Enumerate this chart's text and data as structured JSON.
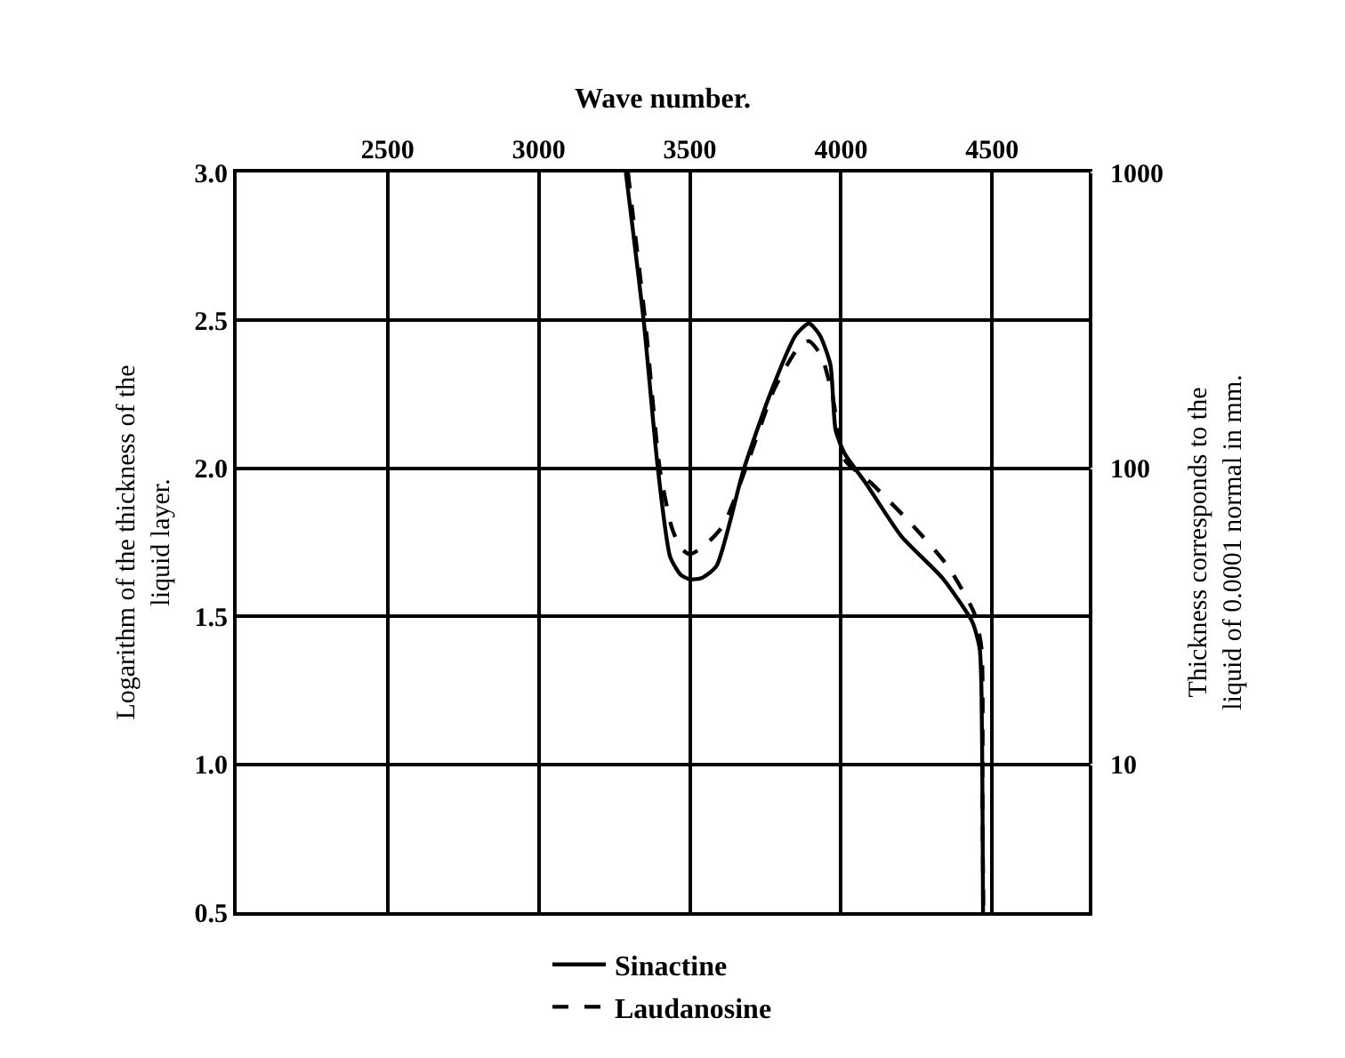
{
  "chart_data": {
    "type": "line",
    "xlabel": "Wave number.",
    "ylabel": "Logarithm of the thickness of the\nliquid layer.",
    "y2label": "Thickness corresponds to the\nliquid of 0.0001 normal in mm.",
    "xlim": [
      2000,
      4820
    ],
    "xticks": [
      2500,
      3000,
      3500,
      4000,
      4500
    ],
    "ylim": [
      0.5,
      3.0
    ],
    "yticks": [
      0.5,
      {
        "value": 1,
        "label": "1.0"
      },
      1.5,
      {
        "value": 2,
        "label": "2.0"
      },
      2.5,
      {
        "value": 3,
        "label": "3.0"
      }
    ],
    "y2lim": [
      3.16,
      1000
    ],
    "y2ticks": [
      10,
      100,
      1000
    ],
    "log": "y2",
    "grid": true,
    "legend": "bottom",
    "marker": "none",
    "series": [
      {
        "name": "Sinactine",
        "color": "#000000",
        "line_style": "solid",
        "x": [
          3288,
          3306,
          3347,
          3394,
          3435,
          3470,
          3500,
          3540,
          3588,
          3676,
          3765,
          3850,
          3894,
          3930,
          3965,
          3982,
          4012,
          4082,
          4200,
          4335,
          4435,
          4459,
          4465,
          4468,
          4470
        ],
        "values": [
          3.0,
          2.85,
          2.5,
          2.0,
          1.7,
          1.64,
          1.625,
          1.63,
          1.67,
          1.99,
          2.25,
          2.45,
          2.49,
          2.45,
          2.35,
          2.13,
          2.05,
          1.95,
          1.77,
          1.63,
          1.48,
          1.39,
          1.24,
          0.9,
          0.5
        ]
      },
      {
        "name": "Laudanosine",
        "color": "#000000",
        "line_style": "dashed",
        "x": [
          3295,
          3312,
          3352,
          3400,
          3440,
          3470,
          3500,
          3550,
          3612,
          3688,
          3780,
          3860,
          3894,
          3935,
          3971,
          4012,
          4100,
          4235,
          4353,
          4441,
          4465,
          4468,
          4471
        ],
        "values": [
          3.0,
          2.85,
          2.5,
          2.0,
          1.8,
          1.73,
          1.71,
          1.74,
          1.81,
          2.01,
          2.27,
          2.41,
          2.43,
          2.38,
          2.25,
          2.03,
          1.95,
          1.81,
          1.67,
          1.51,
          1.39,
          0.9,
          0.5
        ]
      }
    ]
  }
}
